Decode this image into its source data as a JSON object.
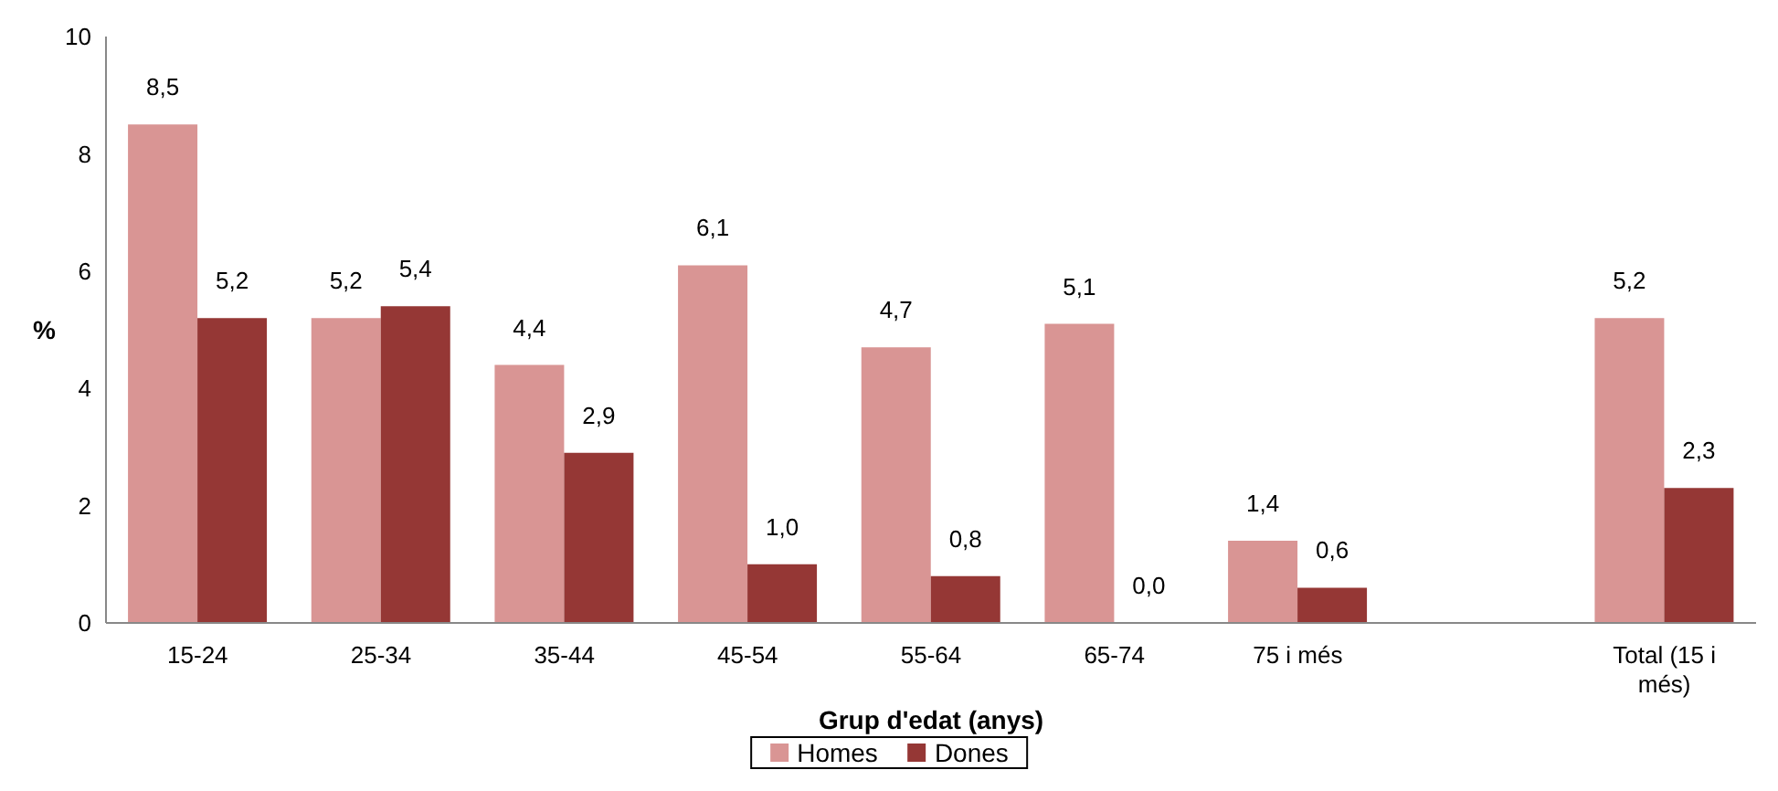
{
  "chart_data": {
    "type": "bar",
    "xlabel": "Grup d'edat (anys)",
    "ylabel": "%",
    "categories": [
      "15-24",
      "25-34",
      "35-44",
      "45-54",
      "55-64",
      "65-74",
      "75 i més",
      null,
      "Total (15 i més)"
    ],
    "series": [
      {
        "name": "Homes",
        "color": "#d99594",
        "values": [
          8.5,
          5.2,
          4.4,
          6.1,
          4.7,
          5.1,
          1.4,
          null,
          5.2
        ],
        "value_labels": [
          "8,5",
          "5,2",
          "4,4",
          "6,1",
          "4,7",
          "5,1",
          "1,4",
          null,
          "5,2"
        ]
      },
      {
        "name": "Dones",
        "color": "#953735",
        "values": [
          5.2,
          5.4,
          2.9,
          1.0,
          0.8,
          0.0,
          0.6,
          null,
          2.3
        ],
        "value_labels": [
          "5,2",
          "5,4",
          "2,9",
          "1,0",
          "0,8",
          "0,0",
          "0,6",
          null,
          "2,3"
        ]
      }
    ],
    "ylim": [
      0,
      10
    ],
    "yticks": [
      0,
      2,
      4,
      6,
      8,
      10
    ],
    "grid": false,
    "legend": "bottom"
  }
}
